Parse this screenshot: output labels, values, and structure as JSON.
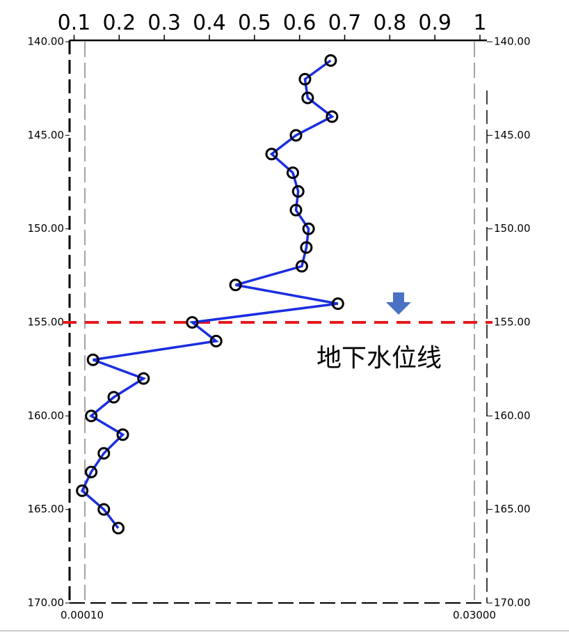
{
  "chart_data": {
    "type": "line",
    "xlim": [
      0.09,
      1.0154
    ],
    "xticks": [
      0.1,
      0.2,
      0.3,
      0.4,
      0.5,
      0.6,
      0.7,
      0.8,
      0.9,
      1
    ],
    "x2lim": [
      0.0001,
      0.03
    ],
    "x2ticks": [
      {
        "value": 0.0001,
        "label": "0.00010"
      },
      {
        "value": 0.03,
        "label": "0.03000"
      }
    ],
    "ylim": [
      140,
      170
    ],
    "yticks": [
      {
        "value": 140,
        "label": "140.00"
      },
      {
        "value": 145,
        "label": "145.00"
      },
      {
        "value": 150,
        "label": "150.00"
      },
      {
        "value": 155,
        "label": "155.00"
      },
      {
        "value": 160,
        "label": "160.00"
      },
      {
        "value": 165,
        "label": "165.00"
      },
      {
        "value": 170,
        "label": "170.00"
      }
    ],
    "series": [
      {
        "color": "#1a2ee0",
        "x": [
          0.669,
          0.612,
          0.618,
          0.672,
          0.592,
          0.538,
          0.585,
          0.597,
          0.592,
          0.62,
          0.615,
          0.605,
          0.458,
          0.685,
          0.362,
          0.415,
          0.142,
          0.254,
          0.188,
          0.138,
          0.208,
          0.166,
          0.138,
          0.118,
          0.166,
          0.198
        ],
        "y": [
          141,
          142,
          143,
          144,
          145,
          146,
          147,
          148,
          149,
          150,
          151,
          152,
          153,
          154,
          155,
          156,
          157,
          158,
          159,
          160,
          161,
          162,
          163,
          164,
          165,
          166
        ]
      }
    ],
    "annotation": {
      "text": "地下水位线",
      "value": 155,
      "color": "#e31a1c"
    }
  }
}
